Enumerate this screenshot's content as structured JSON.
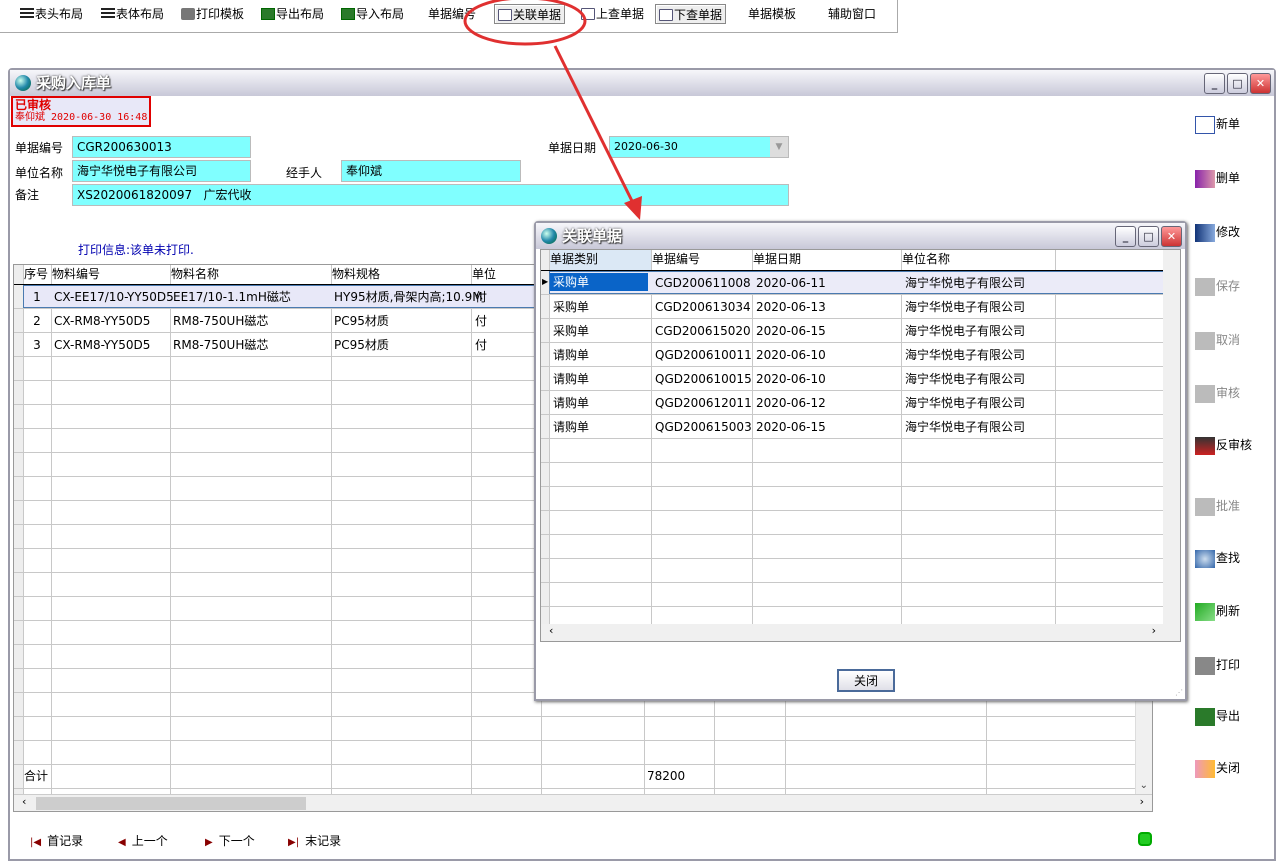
{
  "toolbar": {
    "items": [
      {
        "label": "表头布局",
        "icon": "list-icon"
      },
      {
        "label": "表体布局",
        "icon": "list-icon"
      },
      {
        "label": "打印模板",
        "icon": "printer-icon"
      },
      {
        "label": "导出布局",
        "icon": "excel-icon"
      },
      {
        "label": "导入布局",
        "icon": "excel-icon"
      },
      {
        "label": "单据编号",
        "icon": ""
      },
      {
        "label": "关联单据",
        "icon": "search-doc-icon"
      },
      {
        "label": "上查单据",
        "icon": "search-doc-icon"
      },
      {
        "label": "下查单据",
        "icon": "search-doc-icon"
      },
      {
        "label": "单据模板",
        "icon": ""
      },
      {
        "label": "辅助窗口",
        "icon": ""
      }
    ]
  },
  "main": {
    "title": "采购入库单",
    "status": {
      "label": "已审核",
      "by": "奉仰斌 2020-06-30 16:48",
      "color": "#e00000"
    },
    "form": {
      "doc_no_label": "单据编号",
      "doc_no": "CGR200630013",
      "date_label": "单据日期",
      "date": "2020-06-30",
      "company_label": "单位名称",
      "company": "海宁华悦电子有限公司",
      "handler_label": "经手人",
      "handler": "奉仰斌",
      "remark_label": "备注",
      "remark": "XS2020061820097   广宏代收"
    },
    "print_info": "打印信息:该单未打印.",
    "grid": {
      "headers": [
        "序号",
        "物料编号",
        "物料名称",
        "物料规格",
        "单位"
      ],
      "rows": [
        [
          "1",
          "CX-EE17/10-YY50D5",
          "EE17/10-1.1mH磁芯",
          "HY95材质,骨架内高;10.9M",
          "付"
        ],
        [
          "2",
          "CX-RM8-YY50D5",
          "RM8-750UH磁芯",
          "PC95材质",
          "付"
        ],
        [
          "3",
          "CX-RM8-YY50D5",
          "RM8-750UH磁芯",
          "PC95材质",
          "付"
        ]
      ],
      "total_label": "合计",
      "total_value": "78200"
    },
    "side_buttons": [
      {
        "label": "新单",
        "enabled": true,
        "icon": "new-doc-icon"
      },
      {
        "label": "删单",
        "enabled": true,
        "icon": "delete-hand-icon"
      },
      {
        "label": "修改",
        "enabled": true,
        "icon": "edit-icon"
      },
      {
        "label": "保存",
        "enabled": false,
        "icon": "save-icon"
      },
      {
        "label": "取消",
        "enabled": false,
        "icon": "cancel-icon"
      },
      {
        "label": "审核",
        "enabled": false,
        "icon": "approve-abc-icon"
      },
      {
        "label": "反审核",
        "enabled": true,
        "icon": "unapprove-abc-icon"
      },
      {
        "label": "批准",
        "enabled": false,
        "icon": "ratify-icon"
      },
      {
        "label": "查找",
        "enabled": true,
        "icon": "find-icon"
      },
      {
        "label": "刷新",
        "enabled": true,
        "icon": "refresh-icon"
      },
      {
        "label": "打印",
        "enabled": true,
        "icon": "printer-icon"
      },
      {
        "label": "导出",
        "enabled": true,
        "icon": "excel-icon"
      },
      {
        "label": "关闭",
        "enabled": true,
        "icon": "exit-icon"
      }
    ],
    "nav": [
      "首记录",
      "上一个",
      "下一个",
      "末记录"
    ]
  },
  "dialog": {
    "title": "关联单据",
    "headers": [
      "单据类别",
      "单据编号",
      "单据日期",
      "单位名称"
    ],
    "rows": [
      [
        "采购单",
        "CGD200611008",
        "2020-06-11",
        "海宁华悦电子有限公司"
      ],
      [
        "采购单",
        "CGD200613034",
        "2020-06-13",
        "海宁华悦电子有限公司"
      ],
      [
        "采购单",
        "CGD200615020",
        "2020-06-15",
        "海宁华悦电子有限公司"
      ],
      [
        "请购单",
        "QGD200610011",
        "2020-06-10",
        "海宁华悦电子有限公司"
      ],
      [
        "请购单",
        "QGD200610015",
        "2020-06-10",
        "海宁华悦电子有限公司"
      ],
      [
        "请购单",
        "QGD200612011",
        "2020-06-12",
        "海宁华悦电子有限公司"
      ],
      [
        "请购单",
        "QGD200615003",
        "2020-06-15",
        "海宁华悦电子有限公司"
      ]
    ],
    "close_label": "关闭"
  },
  "annotation_color": "#e03030"
}
